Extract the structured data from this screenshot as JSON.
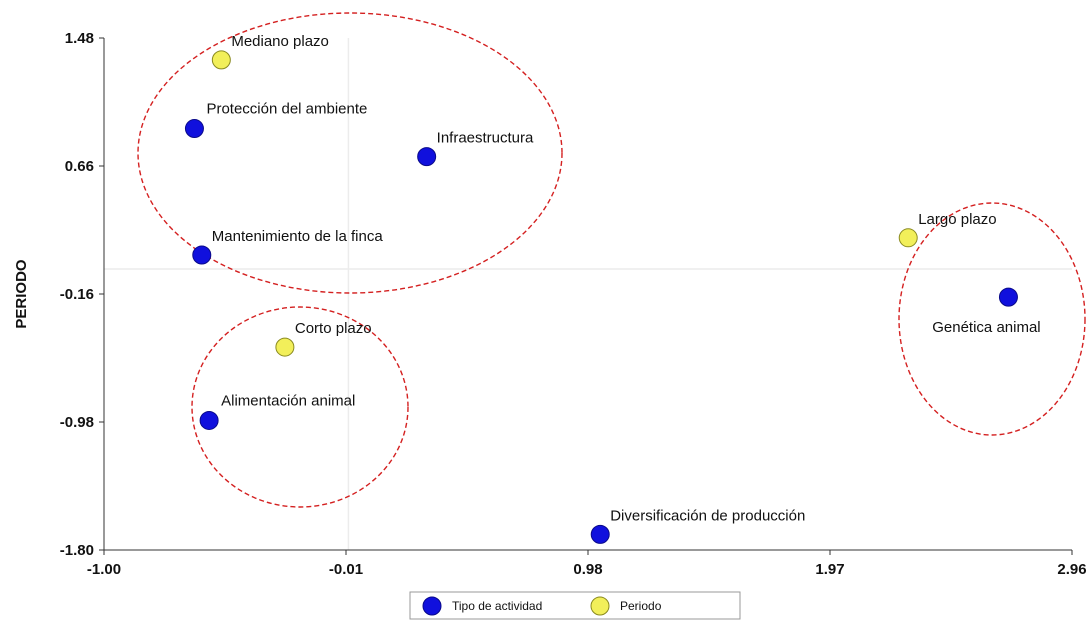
{
  "chart_data": {
    "type": "scatter",
    "xlabel": "",
    "ylabel": "PERIODO",
    "xlim": [
      -1.0,
      2.96
    ],
    "ylim": [
      -1.8,
      1.48
    ],
    "x_ticks": [
      "-1.00",
      "-0.01",
      "0.98",
      "1.97",
      "2.96"
    ],
    "y_ticks": [
      "1.48",
      "0.66",
      "-0.16",
      "-0.98",
      "-1.80"
    ],
    "reference_lines": {
      "x": 0.0,
      "y": 0.0
    },
    "series": [
      {
        "name": "Tipo de actividad",
        "color": "#1010dd",
        "points": [
          {
            "label": "Protección del ambiente",
            "x": -0.63,
            "y": 0.9
          },
          {
            "label": "Infraestructura",
            "x": 0.32,
            "y": 0.72
          },
          {
            "label": "Mantenimiento de la finca",
            "x": -0.6,
            "y": 0.09
          },
          {
            "label": "Alimentación animal",
            "x": -0.57,
            "y": -0.97
          },
          {
            "label": "Diversificación de producción",
            "x": 1.03,
            "y": -1.7
          },
          {
            "label": "Genética animal",
            "x": 2.7,
            "y": -0.18
          }
        ]
      },
      {
        "name": "Periodo",
        "color": "#f2ef5a",
        "points": [
          {
            "label": "Mediano plazo",
            "x": -0.52,
            "y": 1.34
          },
          {
            "label": "Corto plazo",
            "x": -0.26,
            "y": -0.5
          },
          {
            "label": "Largo plazo",
            "x": 2.29,
            "y": 0.2
          }
        ]
      }
    ],
    "legend": {
      "position": "bottom"
    },
    "annotation_color": "#d42020"
  }
}
